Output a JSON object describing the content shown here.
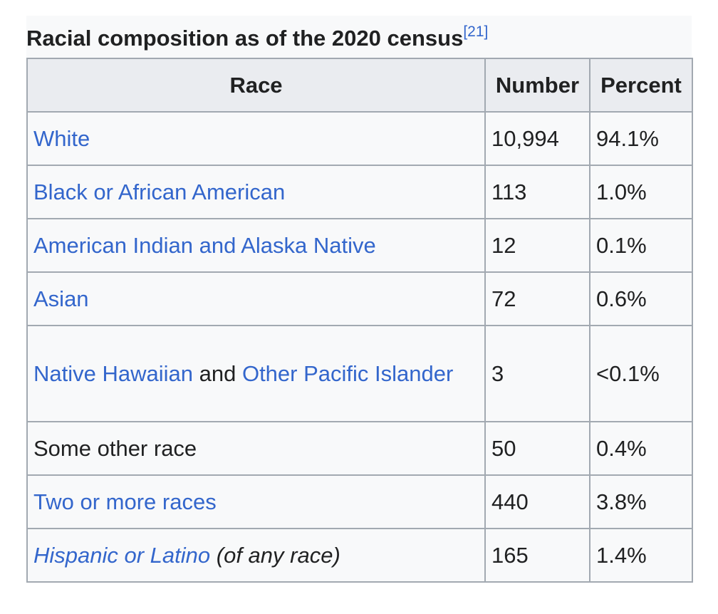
{
  "caption": {
    "title": "Racial composition as of the 2020 census",
    "ref": "[21]"
  },
  "headers": {
    "race": "Race",
    "number": "Number",
    "percent": "Percent"
  },
  "rows": [
    {
      "race": "White",
      "number": "10,994",
      "percent": "94.1%"
    },
    {
      "race": "Black or African American",
      "number": "113",
      "percent": "1.0%"
    },
    {
      "race": "American Indian and Alaska Native",
      "number": "12",
      "percent": "0.1%"
    },
    {
      "race": "Asian",
      "number": "72",
      "percent": "0.6%"
    },
    {
      "race_part1": "Native Hawaiian",
      "race_part2": " and ",
      "race_part3": "Other Pacific Islander",
      "number": "3",
      "percent": "<0.1%"
    },
    {
      "race": "Some other race",
      "number": "50",
      "percent": "0.4%"
    },
    {
      "race": "Two or more races",
      "number": "440",
      "percent": "3.8%"
    },
    {
      "race_link": "Hispanic or Latino",
      "race_note": " (of any race)",
      "number": "165",
      "percent": "1.4%"
    }
  ]
}
